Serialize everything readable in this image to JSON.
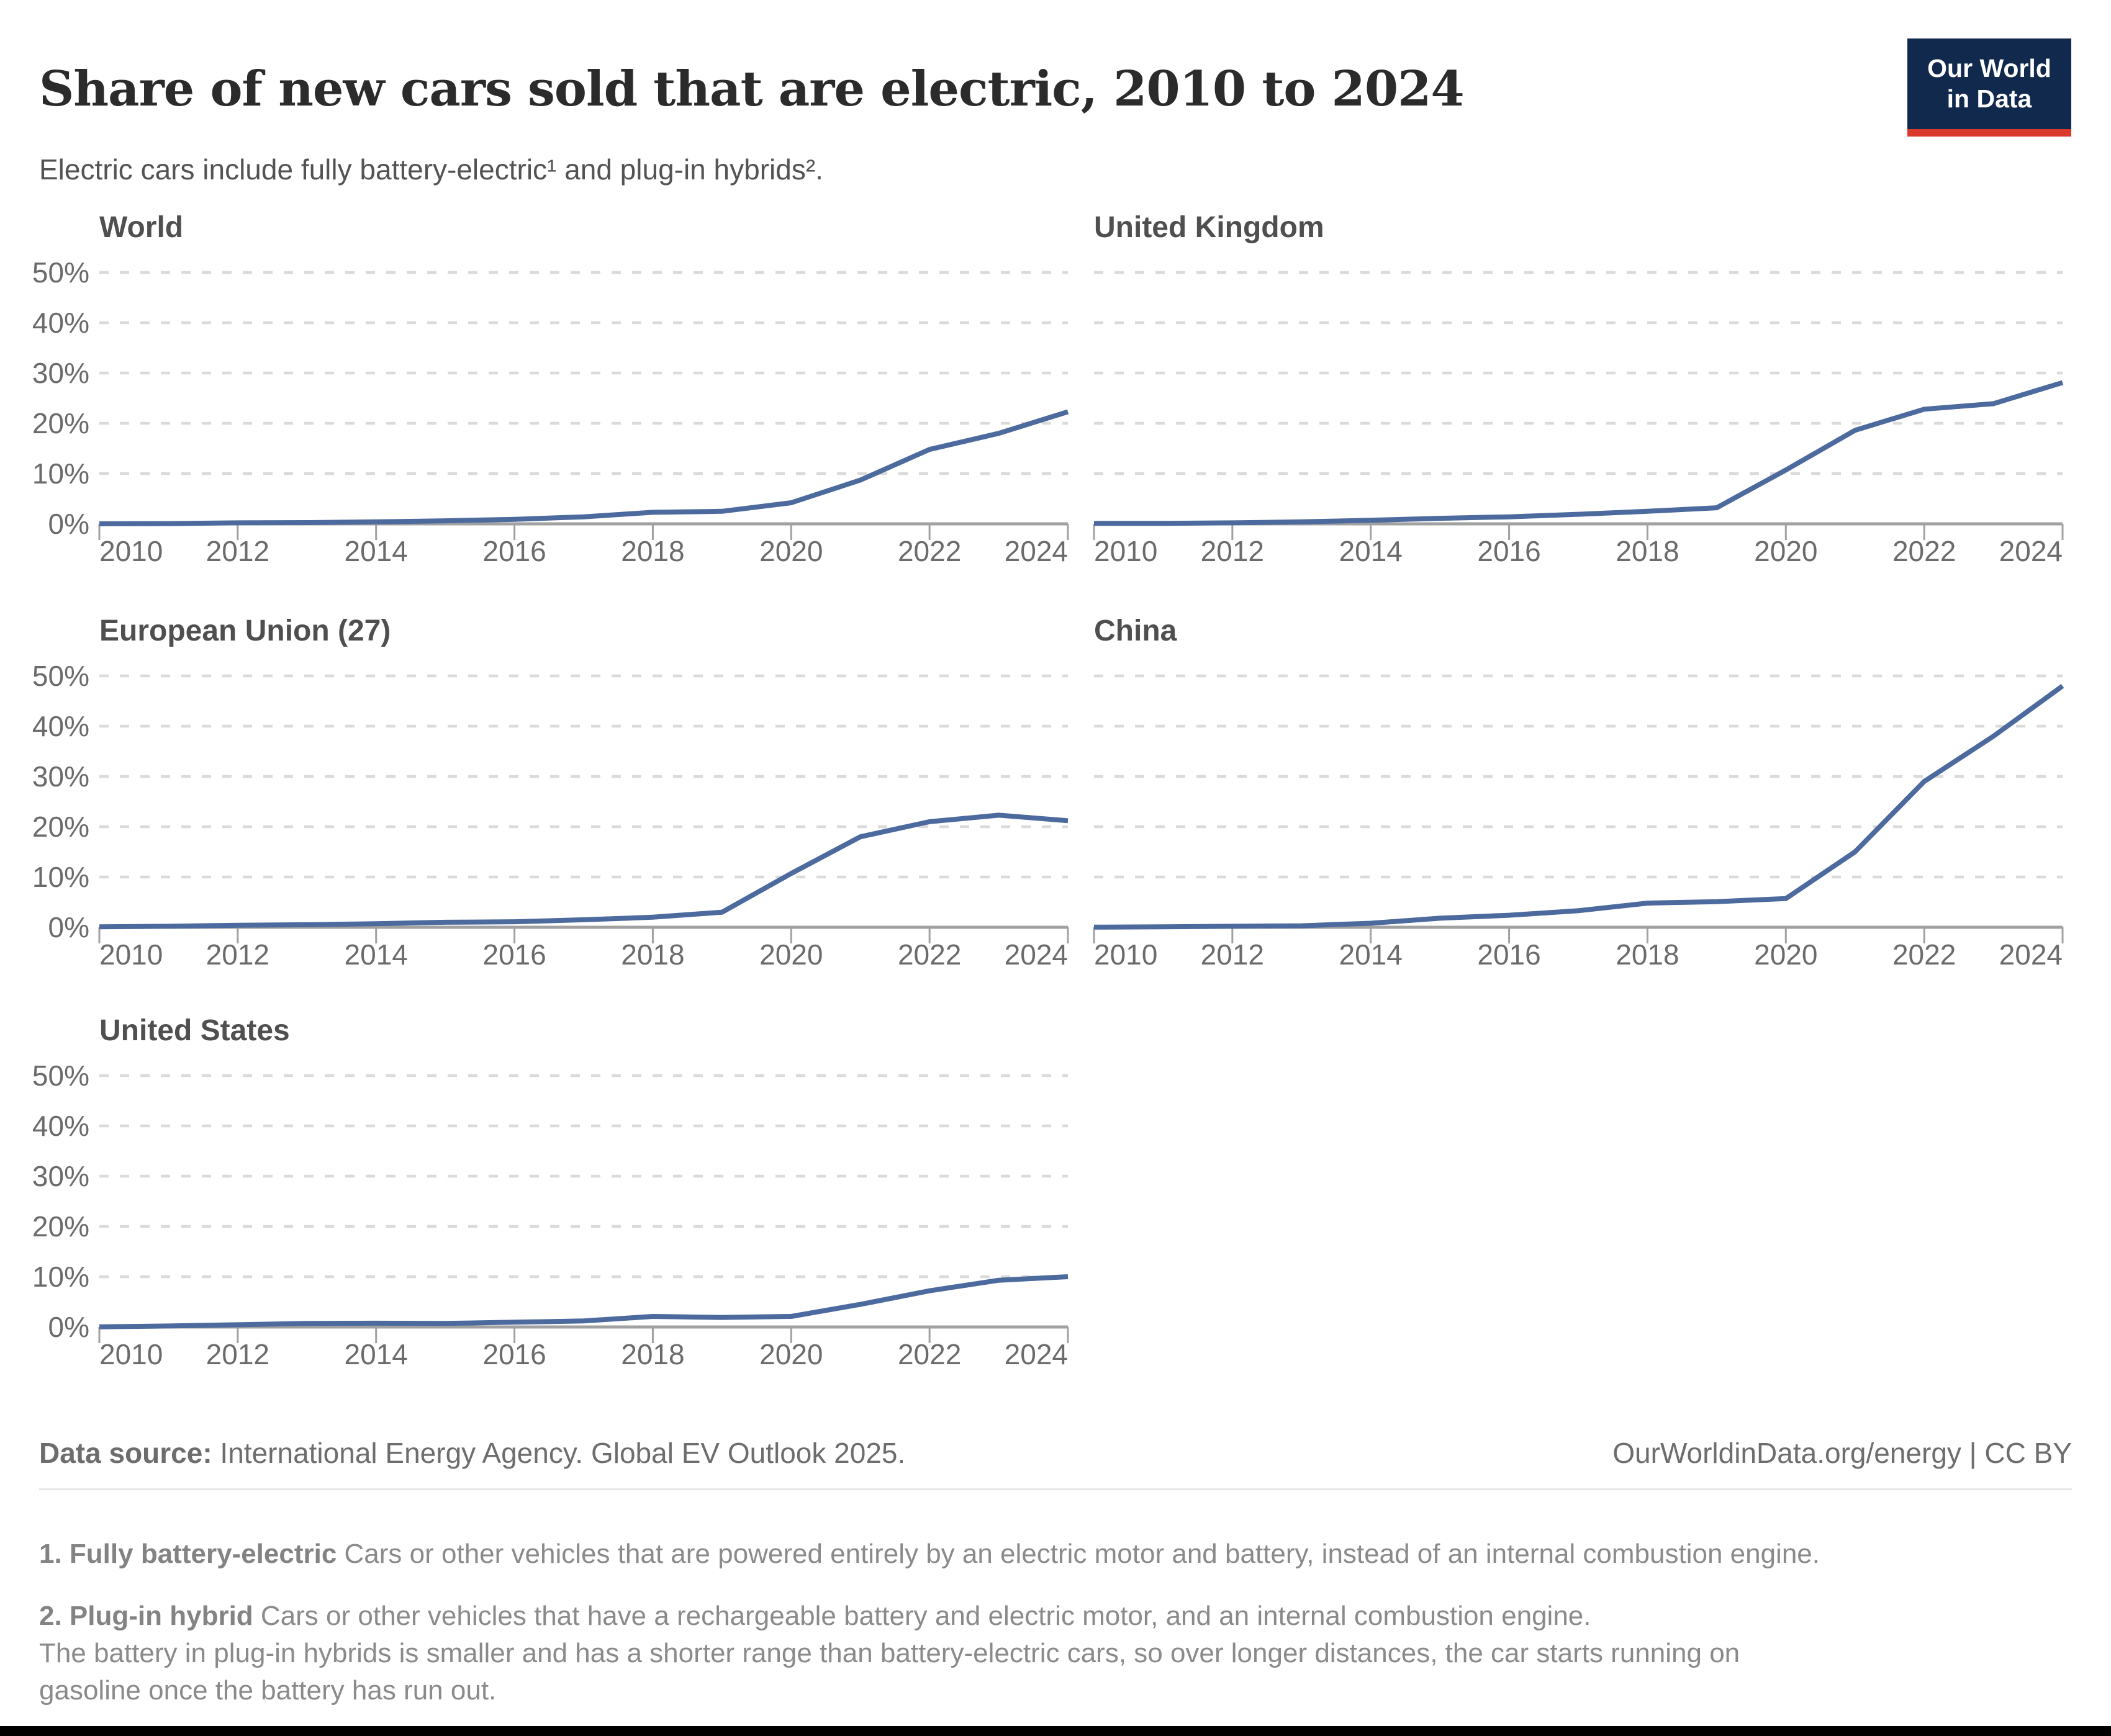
{
  "header": {
    "title": "Share of new cars sold that are electric, 2010 to 2024",
    "subtitle": "Electric cars include fully battery-electric¹ and plug-in hybrids².",
    "logo_line1": "Our World",
    "logo_line2": "in Data",
    "logo_bg_color": "#12294e",
    "logo_accent_color": "#d93a2b"
  },
  "footer": {
    "data_source_label": "Data source:",
    "data_source_text": " International Energy Agency. Global EV Outlook 2025.",
    "right_text": "OurWorldinData.org/energy | CC BY"
  },
  "footnotes": [
    {
      "bold": "1. Fully battery-electric",
      "rest": " Cars or other vehicles that are powered entirely by an electric motor and battery, instead of an internal combustion engine."
    },
    {
      "bold": "2. Plug-in hybrid",
      "rest": " Cars or other vehicles that have a rechargeable battery and electric motor, and an internal combustion engine.",
      "line2": "The battery in plug-in hybrids is smaller and has a shorter range than battery-electric cars, so over longer distances, the car starts running on",
      "line3": "gasoline once the battery has run out."
    }
  ],
  "chart_data": {
    "type": "line",
    "title": "Share of new cars sold that are electric, 2010 to 2024",
    "xlabel": "",
    "ylabel": "",
    "ylim": [
      0,
      50
    ],
    "grid": true,
    "legend": "none",
    "line_color": "#4c6a9e",
    "grid_color": "#dadada",
    "axis_color": "#a1a1a1",
    "tick_label_color": "#6b6b6b",
    "x": [
      2010,
      2011,
      2012,
      2013,
      2014,
      2015,
      2016,
      2017,
      2018,
      2019,
      2020,
      2021,
      2022,
      2023,
      2024
    ],
    "x_tick_labels": [
      "2010",
      "2012",
      "2014",
      "2016",
      "2018",
      "2020",
      "2022",
      "2024"
    ],
    "y_tick_labels": [
      "0%",
      "10%",
      "20%",
      "30%",
      "40%",
      "50%"
    ],
    "panels": [
      {
        "title": "World",
        "values": [
          0.01,
          0.05,
          0.2,
          0.25,
          0.4,
          0.6,
          0.9,
          1.4,
          2.3,
          2.5,
          4.2,
          8.7,
          14.8,
          18,
          22.3
        ]
      },
      {
        "title": "United Kingdom",
        "values": [
          0.1,
          0.1,
          0.2,
          0.4,
          0.7,
          1.1,
          1.4,
          1.9,
          2.5,
          3.2,
          10.7,
          18.6,
          22.8,
          23.9,
          28.1
        ]
      },
      {
        "title": "European Union (27)",
        "values": [
          0.1,
          0.2,
          0.4,
          0.5,
          0.7,
          1.0,
          1.1,
          1.5,
          2.0,
          3.0,
          10.7,
          18,
          21,
          22.3,
          21.2
        ]
      },
      {
        "title": "China",
        "values": [
          0.03,
          0.1,
          0.2,
          0.3,
          0.8,
          1.8,
          2.4,
          3.3,
          4.8,
          5.1,
          5.7,
          15,
          29,
          38,
          48
        ]
      },
      {
        "title": "United States",
        "values": [
          0.02,
          0.2,
          0.45,
          0.7,
          0.75,
          0.7,
          0.95,
          1.2,
          2.1,
          1.9,
          2.1,
          4.5,
          7.2,
          9.3,
          10
        ]
      }
    ]
  }
}
